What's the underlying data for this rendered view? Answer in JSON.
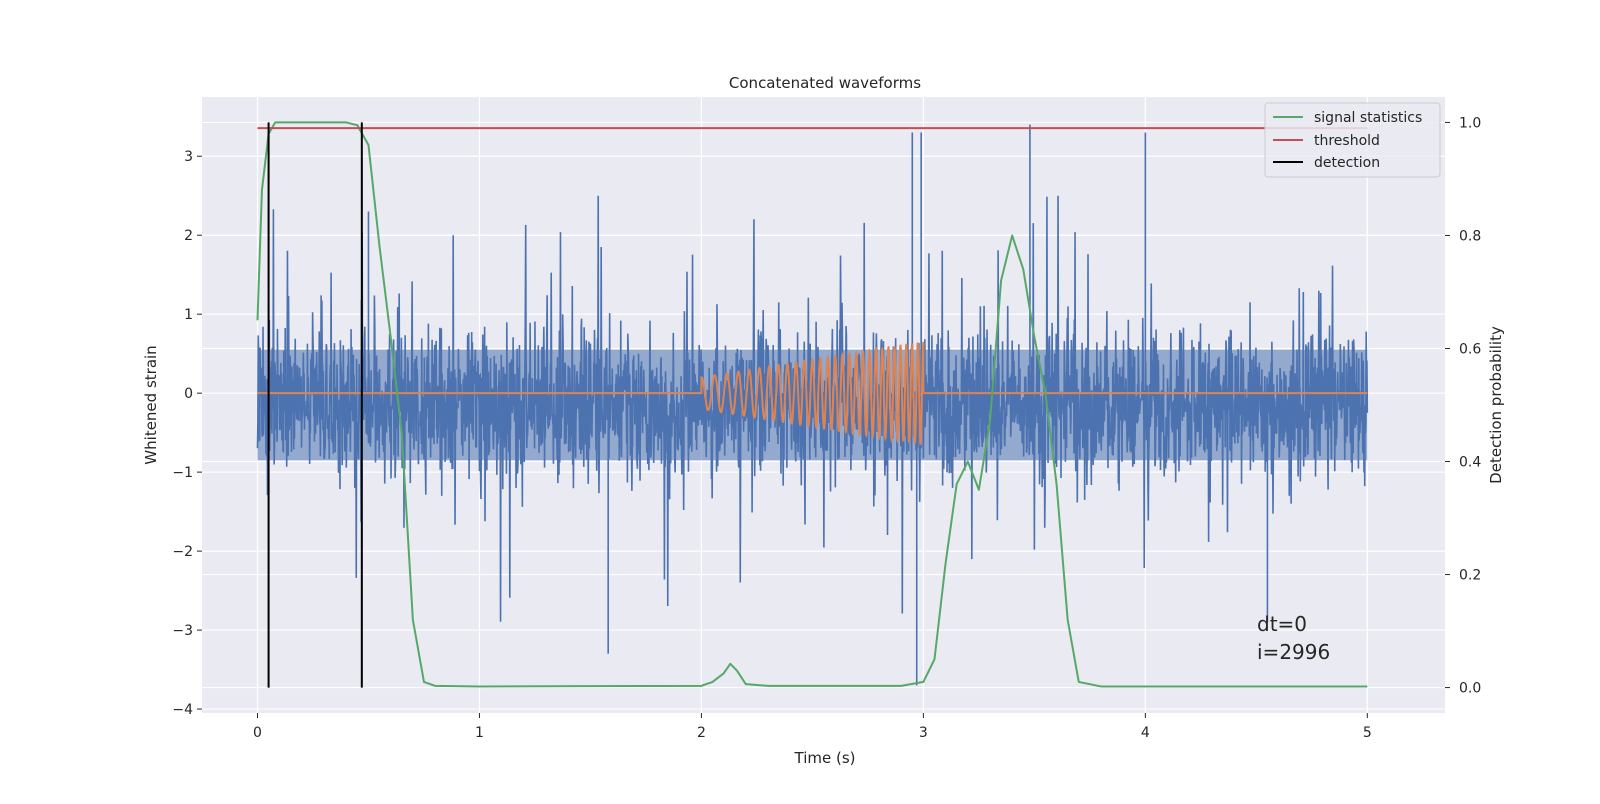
{
  "chart_data": {
    "type": "line",
    "title": "Concatenated waveforms",
    "xlabel": "Time (s)",
    "ylabel": "Whitened strain",
    "y2label": "Detection probability",
    "xlim": [
      -0.25,
      5.35
    ],
    "ylim": [
      -4.05,
      3.75
    ],
    "y2lim": [
      -0.045,
      1.045
    ],
    "xticks": [
      0,
      1,
      2,
      3,
      4,
      5
    ],
    "yticks": [
      -4,
      -3,
      -2,
      -1,
      0,
      1,
      2,
      3
    ],
    "y2ticks": [
      0.0,
      0.2,
      0.4,
      0.6,
      0.8,
      1.0
    ],
    "xtick_labels": [
      "0",
      "1",
      "2",
      "3",
      "4",
      "5"
    ],
    "ytick_labels": [
      "−4",
      "−3",
      "−2",
      "−1",
      "0",
      "1",
      "2",
      "3"
    ],
    "y2tick_labels": [
      "0.0",
      "0.2",
      "0.4",
      "0.6",
      "0.8",
      "1.0"
    ],
    "grid": true,
    "legend_position": "top-right",
    "series": [
      {
        "name": "",
        "kind": "noise",
        "axis": "left",
        "color": "#4c72b0",
        "x_range": [
          0,
          5
        ],
        "typical_band": [
          -0.85,
          0.55
        ],
        "max": 3.4,
        "min": -3.7,
        "spikes": [
          [
            2.95,
            3.3
          ],
          [
            2.97,
            -3.7
          ],
          [
            2.99,
            3.3
          ],
          [
            3.48,
            3.4
          ],
          [
            4.0,
            3.3
          ],
          [
            1.58,
            -3.3
          ],
          [
            0.5,
            2.3
          ],
          [
            4.55,
            -2.9
          ]
        ]
      },
      {
        "name": "",
        "kind": "chirp",
        "axis": "left",
        "color": "#dd8452",
        "x": [
          0,
          2,
          3,
          5
        ],
        "y": [
          0,
          0,
          0,
          0
        ],
        "chirp_range": [
          2.0,
          3.0
        ],
        "amplitude_start": 0.2,
        "amplitude_end": 0.65
      },
      {
        "name": "signal statistics",
        "axis": "right",
        "color": "#55a868",
        "x": [
          0.0,
          0.02,
          0.05,
          0.08,
          0.1,
          0.2,
          0.3,
          0.4,
          0.45,
          0.5,
          0.55,
          0.6,
          0.65,
          0.7,
          0.75,
          0.8,
          1.0,
          2.0,
          2.05,
          2.1,
          2.13,
          2.16,
          2.2,
          2.3,
          2.9,
          3.0,
          3.05,
          3.1,
          3.15,
          3.2,
          3.25,
          3.3,
          3.35,
          3.4,
          3.45,
          3.5,
          3.55,
          3.6,
          3.65,
          3.7,
          3.8,
          5.0
        ],
        "y": [
          0.65,
          0.88,
          0.98,
          1.0,
          1.0,
          1.0,
          1.0,
          1.0,
          0.995,
          0.96,
          0.78,
          0.62,
          0.45,
          0.12,
          0.01,
          0.003,
          0.002,
          0.003,
          0.01,
          0.025,
          0.042,
          0.03,
          0.006,
          0.003,
          0.003,
          0.01,
          0.05,
          0.22,
          0.36,
          0.4,
          0.35,
          0.47,
          0.72,
          0.8,
          0.74,
          0.62,
          0.52,
          0.36,
          0.12,
          0.01,
          0.002,
          0.002
        ]
      },
      {
        "name": "threshold",
        "axis": "right",
        "color": "#c44e52",
        "x": [
          0,
          5
        ],
        "y": [
          0.99,
          0.99
        ]
      },
      {
        "name": "detection",
        "axis": "right",
        "color": "#000000",
        "kind": "vlines",
        "x": [
          0.05,
          0.47
        ],
        "y_range": [
          0.0,
          1.0
        ]
      }
    ],
    "annotations": [
      {
        "text": "dt=0",
        "x": 4.5,
        "y": -2.9
      },
      {
        "text": "i=2996",
        "x": 4.5,
        "y": -3.25
      }
    ]
  },
  "colors": {
    "plot_bg": "#eaeaf2",
    "grid": "#ffffff"
  }
}
